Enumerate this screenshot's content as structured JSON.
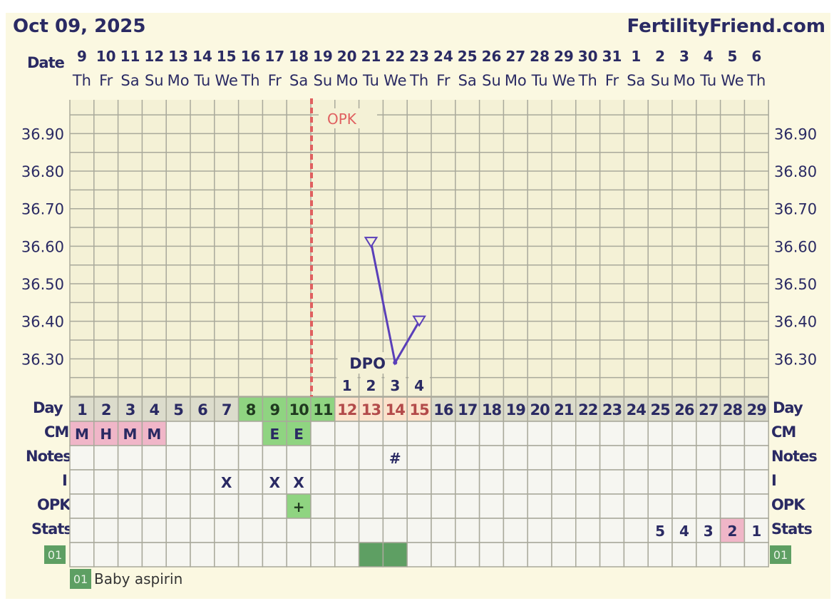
{
  "header": {
    "date": "Oct 09, 2025",
    "site": "FertilityFriend.com"
  },
  "labels": {
    "date": "Date",
    "day": "Day",
    "cm": "CM",
    "notes": "Notes",
    "i": "I",
    "opk": "OPK",
    "stats": "Stats",
    "dpo": "DPO",
    "opk_line": "OPK"
  },
  "legend": {
    "badge": "01",
    "text": "Baby aspirin"
  },
  "colors": {
    "grid": "#a9a99b",
    "plot_bg": "#f4f1d6",
    "temp_line": "#5a3fb9",
    "opk_line": "#e06060",
    "cm_pink": "#f0b6c8",
    "green": "#8fd481",
    "dpo_bg": "#fbe3cc",
    "day_bg": "#dcdccc",
    "med_green": "#5e9f63",
    "text_dark": "#2a2a63"
  },
  "chart_data": {
    "type": "line",
    "ylim": [
      36.2,
      37.0
    ],
    "yticks": [
      "36.90",
      "36.80",
      "36.70",
      "36.60",
      "36.50",
      "36.40",
      "36.30"
    ],
    "dates": [
      "9",
      "10",
      "11",
      "12",
      "13",
      "14",
      "15",
      "16",
      "17",
      "18",
      "19",
      "20",
      "21",
      "22",
      "23",
      "24",
      "25",
      "26",
      "27",
      "28",
      "29",
      "30",
      "31",
      "1",
      "2",
      "3",
      "4",
      "5",
      "6"
    ],
    "weekdays": [
      "Th",
      "Fr",
      "Sa",
      "Su",
      "Mo",
      "Tu",
      "We",
      "Th",
      "Fr",
      "Sa",
      "Su",
      "Mo",
      "Tu",
      "We",
      "Th",
      "Fr",
      "Sa",
      "Su",
      "Mo",
      "Tu",
      "We",
      "Th",
      "Fr",
      "Sa",
      "Su",
      "Mo",
      "Tu",
      "We",
      "Th"
    ],
    "cycle_days": [
      "1",
      "2",
      "3",
      "4",
      "5",
      "6",
      "7",
      "8",
      "9",
      "10",
      "11",
      "12",
      "13",
      "14",
      "15",
      "16",
      "17",
      "18",
      "19",
      "20",
      "21",
      "22",
      "23",
      "24",
      "25",
      "26",
      "27",
      "28",
      "29"
    ],
    "dpo": [
      "",
      "",
      "",
      "",
      "",
      "",
      "",
      "",
      "",
      "",
      "",
      "1",
      "2",
      "3",
      "4",
      "",
      "",
      "",
      "",
      "",
      "",
      "",
      "",
      "",
      "",
      "",
      "",
      "",
      ""
    ],
    "temperatures": [
      {
        "day": 13,
        "value": 36.61,
        "open": true
      },
      {
        "day": 14,
        "value": 36.29,
        "open": false
      },
      {
        "day": 15,
        "value": 36.4,
        "open": true
      }
    ],
    "opk_marker_day": 11,
    "cm": [
      "M",
      "H",
      "M",
      "M",
      "",
      "",
      "",
      "",
      "E",
      "E",
      "",
      "",
      "",
      "",
      "",
      "",
      "",
      "",
      "",
      "",
      "",
      "",
      "",
      "",
      "",
      "",
      "",
      "",
      ""
    ],
    "notes": [
      "",
      "",
      "",
      "",
      "",
      "",
      "",
      "",
      "",
      "",
      "",
      "",
      "",
      "#",
      "",
      "",
      "",
      "",
      "",
      "",
      "",
      "",
      "",
      "",
      "",
      "",
      "",
      "",
      ""
    ],
    "intercourse": [
      "",
      "",
      "",
      "",
      "",
      "",
      "X",
      "",
      "X",
      "X",
      "",
      "",
      "",
      "",
      "",
      "",
      "",
      "",
      "",
      "",
      "",
      "",
      "",
      "",
      "",
      "",
      "",
      "",
      ""
    ],
    "opk": [
      "",
      "",
      "",
      "",
      "",
      "",
      "",
      "",
      "",
      "+",
      "",
      "",
      "",
      "",
      "",
      "",
      "",
      "",
      "",
      "",
      "",
      "",
      "",
      "",
      "",
      "",
      "",
      "",
      ""
    ],
    "stats": [
      "",
      "",
      "",
      "",
      "",
      "",
      "",
      "",
      "",
      "",
      "",
      "",
      "",
      "",
      "",
      "",
      "",
      "",
      "",
      "",
      "",
      "",
      "",
      "",
      "5",
      "4",
      "3",
      "2",
      "1"
    ],
    "medication": [
      false,
      false,
      false,
      false,
      false,
      false,
      false,
      false,
      false,
      false,
      false,
      false,
      true,
      true,
      false,
      false,
      false,
      false,
      false,
      false,
      false,
      false,
      false,
      false,
      false,
      false,
      false,
      false,
      false
    ]
  }
}
